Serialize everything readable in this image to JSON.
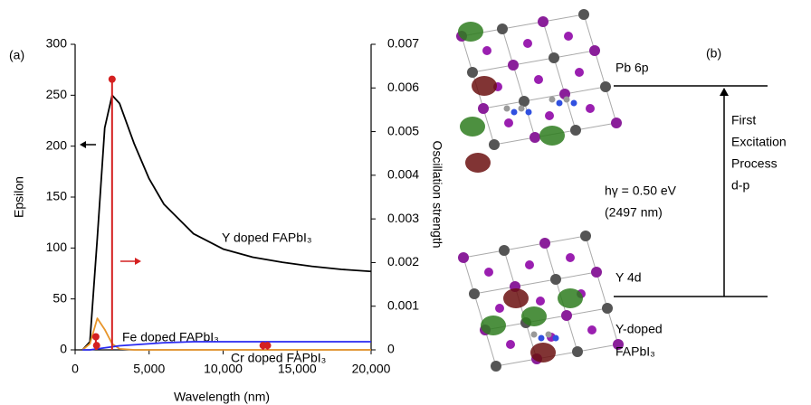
{
  "chart_data": {
    "type": "line",
    "panel_label": "(a)",
    "x_label": "Wavelength (nm)",
    "y_label": "Epsilon",
    "y2_label": "Oscillation strength",
    "xlim": [
      0,
      20000
    ],
    "xticks": [
      0,
      {
        "value": 5000,
        "label": "5,000"
      },
      {
        "value": 10000,
        "label": "10,000"
      },
      {
        "value": 15000,
        "label": "15,000"
      },
      {
        "value": 20000,
        "label": "20,000"
      }
    ],
    "ylim": [
      0,
      300
    ],
    "yticks": [
      0,
      50,
      100,
      150,
      200,
      250,
      300
    ],
    "y2lim": [
      0,
      0.007
    ],
    "y2ticks": [
      0,
      0.001,
      0.002,
      0.003,
      0.004,
      0.005,
      0.006,
      0.007
    ],
    "x": [
      500,
      1000,
      1500,
      2000,
      2500,
      3000,
      4000,
      5000,
      6000,
      8000,
      10000,
      12000,
      14000,
      16000,
      18000,
      20000
    ],
    "series": [
      {
        "name": "Y doped FAPbI₃",
        "color": "#000000",
        "values": [
          0,
          8,
          110,
          218,
          250,
          242,
          202,
          168,
          143,
          114,
          99,
          91,
          86,
          82,
          79,
          77
        ]
      },
      {
        "name": "Fe doped FAPbI₃",
        "color": "#e8952a",
        "values": [
          0,
          6,
          31,
          20,
          6,
          1,
          0,
          0,
          0,
          0,
          0,
          0,
          0,
          0,
          0,
          0
        ]
      },
      {
        "name": "Cr doped FAPbI₃",
        "color": "#2a2af0",
        "values": [
          0,
          0,
          1,
          2,
          3,
          4,
          5,
          6,
          7,
          8,
          8,
          8,
          8,
          8,
          8,
          8
        ]
      }
    ],
    "sticks": {
      "color": "#d42020",
      "axis": "y2",
      "x": [
        2497,
        1400,
        1450,
        12700,
        13000
      ],
      "values": [
        0.0062,
        0.0003,
        0.0001,
        0.0001,
        0.0001
      ]
    }
  },
  "diagram": {
    "panel_label": "(b)",
    "upper_level": "Pb 6p",
    "lower_level": "Y 4d",
    "process": [
      "First",
      "Excitation",
      "Process",
      "d-p"
    ],
    "energy": "hγ = 0.50 eV",
    "wavelength": "(2497 nm)",
    "system": [
      "Y-doped",
      "FAPbI₃"
    ]
  }
}
